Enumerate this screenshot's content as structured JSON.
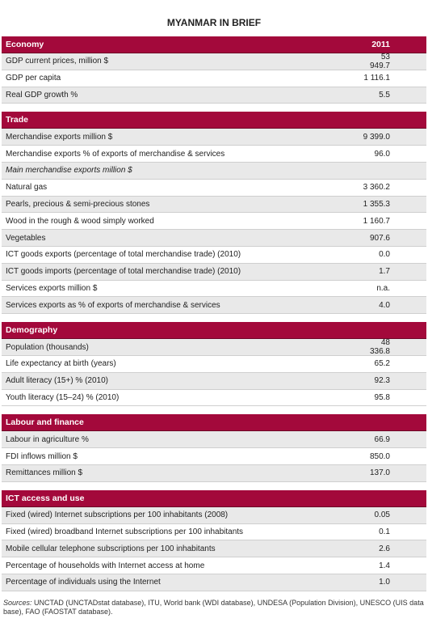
{
  "title": "MYANMAR IN BRIEF",
  "sections": [
    {
      "header": "Economy",
      "year": "2011",
      "rows": [
        {
          "label": "GDP current prices, million $",
          "value": "53 949.7"
        },
        {
          "label": "GDP per capita",
          "value": "1 116.1"
        },
        {
          "label": "Real GDP growth %",
          "value": "5.5"
        }
      ]
    },
    {
      "header": "Trade",
      "rows": [
        {
          "label": "Merchandise exports million $",
          "value": "9 399.0"
        },
        {
          "label": "Merchandise exports % of exports of merchandise & services",
          "value": "96.0"
        },
        {
          "label": "Main merchandise exports million $",
          "italic": true
        },
        {
          "label": "Natural gas",
          "value": "3 360.2"
        },
        {
          "label": "Pearls, precious & semi-precious stones",
          "value": "1 355.3"
        },
        {
          "label": "Wood in the rough & wood simply worked",
          "value": "1 160.7"
        },
        {
          "label": "Vegetables",
          "value": "907.6"
        },
        {
          "label": "ICT goods exports (percentage of total merchandise trade) (2010)",
          "value": "0.0"
        },
        {
          "label": "ICT goods imports (percentage of total merchandise trade) (2010)",
          "value": "1.7"
        },
        {
          "label": "Services exports million $",
          "value": "n.a."
        },
        {
          "label": "Services exports as % of exports of merchandise & services",
          "value": "4.0"
        }
      ]
    },
    {
      "header": "Demography",
      "rows": [
        {
          "label": "Population (thousands)",
          "value": "48 336.8"
        },
        {
          "label": "Life expectancy at birth (years)",
          "value": "65.2"
        },
        {
          "label": "Adult literacy (15+) % (2010)",
          "value": "92.3"
        },
        {
          "label": "Youth literacy (15–24) % (2010)",
          "value": "95.8"
        }
      ]
    },
    {
      "header": "Labour and finance",
      "rows": [
        {
          "label": "Labour in agriculture %",
          "value": "66.9"
        },
        {
          "label": "FDI inflows million $",
          "value": "850.0"
        },
        {
          "label": "Remittances million $",
          "value": "137.0"
        }
      ]
    },
    {
      "header": "ICT access and use",
      "rows": [
        {
          "label": "Fixed (wired) Internet subscriptions per 100 inhabitants (2008)",
          "value": "0.05"
        },
        {
          "label": "Fixed (wired) broadband Internet subscriptions per 100 inhabitants",
          "value": "0.1"
        },
        {
          "label": "Mobile cellular telephone subscriptions per 100 inhabitants",
          "value": "2.6"
        },
        {
          "label": "Percentage of households with Internet access at home",
          "value": "1.4"
        },
        {
          "label": "Percentage of individuals using the Internet",
          "value": "1.0"
        }
      ]
    }
  ],
  "sources_label": "Sources:",
  "sources": "UNCTAD (UNCTADstat database), ITU, World bank (WDI database), UNDESA (Population Division), UNESCO (UIS data base), FAO (FAOSTAT database)."
}
